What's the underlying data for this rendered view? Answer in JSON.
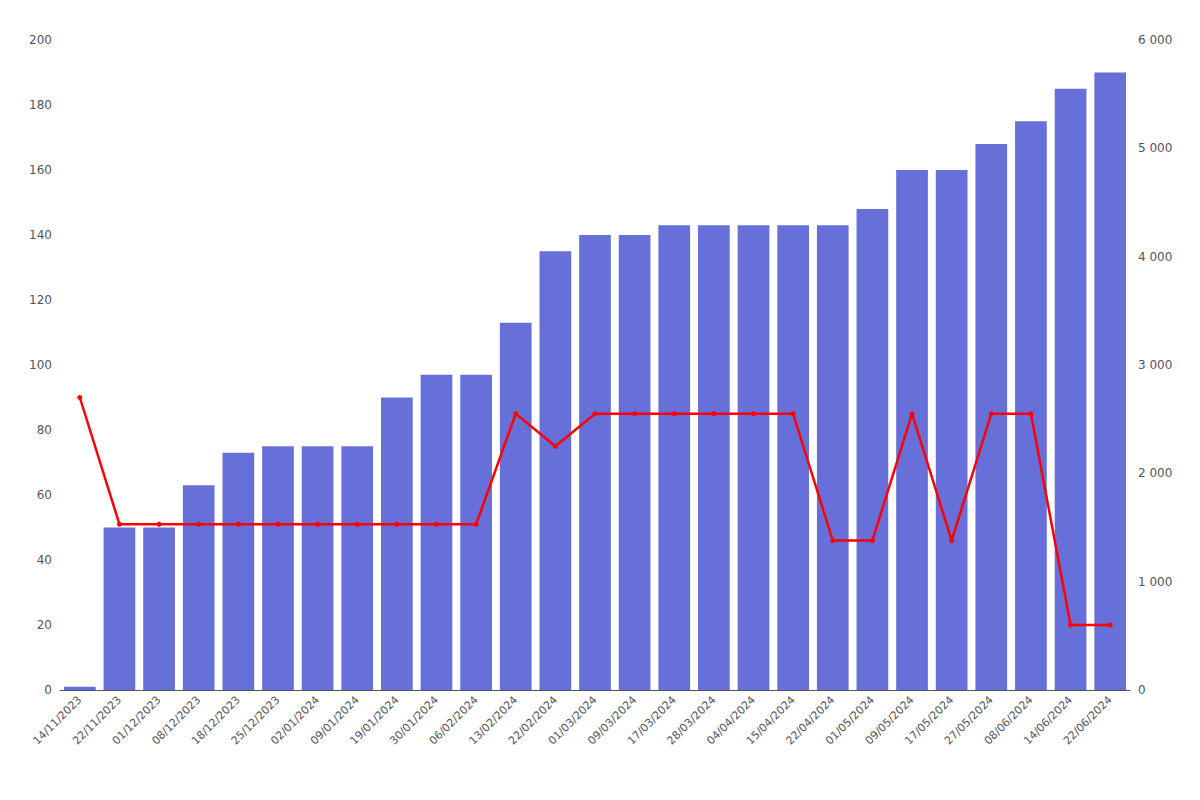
{
  "chart_data": {
    "type": "bar",
    "categories": [
      "14/11/2023",
      "22/11/2023",
      "01/12/2023",
      "08/12/2023",
      "18/12/2023",
      "25/12/2023",
      "02/01/2024",
      "09/01/2024",
      "19/01/2024",
      "30/01/2024",
      "06/02/2024",
      "13/02/2024",
      "22/02/2024",
      "01/03/2024",
      "09/03/2024",
      "17/03/2024",
      "28/03/2024",
      "04/04/2024",
      "15/04/2024",
      "22/04/2024",
      "01/05/2024",
      "09/05/2024",
      "17/05/2024",
      "27/05/2024",
      "08/06/2024",
      "14/06/2024",
      "22/06/2024"
    ],
    "series": [
      {
        "type": "bar",
        "color": "#6670d8",
        "values": [
          1,
          50,
          50,
          63,
          73,
          75,
          75,
          75,
          90,
          97,
          97,
          113,
          135,
          140,
          140,
          143,
          143,
          143,
          143,
          143,
          148,
          160,
          160,
          168,
          175,
          185,
          190
        ]
      },
      {
        "type": "line",
        "color": "#ff0000",
        "marker": "circle",
        "values": [
          90,
          51,
          51,
          51,
          51,
          51,
          51,
          51,
          51,
          51,
          51,
          85,
          75,
          85,
          85,
          85,
          85,
          85,
          85,
          46,
          46,
          85,
          46,
          85,
          85,
          20,
          20
        ]
      }
    ],
    "ylim": [
      0,
      200
    ],
    "yticks": [
      0,
      20,
      40,
      60,
      80,
      100,
      120,
      140,
      160,
      180,
      200
    ],
    "y2lim": [
      0,
      6000
    ],
    "y2ticks": [
      0,
      {
        "value": 1000,
        "label": "1 000"
      },
      {
        "value": 2000,
        "label": "2 000"
      },
      {
        "value": 3000,
        "label": "3 000"
      },
      {
        "value": 4000,
        "label": "4 000"
      },
      {
        "value": 5000,
        "label": "5 000"
      },
      {
        "value": 6000,
        "label": "6 000"
      }
    ],
    "grid": false
  }
}
